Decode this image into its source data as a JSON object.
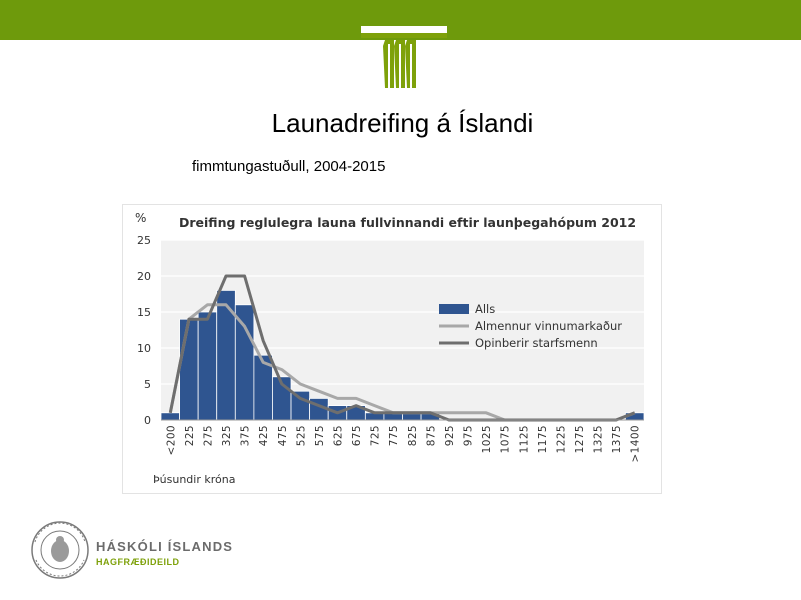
{
  "slide": {
    "title": "Launadreifing á Íslandi",
    "subtitle": "fimmtungastuðull, 2004-2015",
    "footer_name": "HÁSKÓLI ÍSLANDS",
    "footer_dept": "HAGFRÆÐIDEILD",
    "header_color": "#6e9a0c",
    "logo_icon": "university-pillars-logo",
    "seal_icon": "university-seal"
  },
  "chart_data": {
    "type": "bar",
    "title": "Dreifing reglulegra launa fullvinnandi eftir launþegahópum 2012",
    "ylabel": "%",
    "xlabel": "Þúsundir króna",
    "ylim": [
      0,
      25
    ],
    "yticks": [
      0,
      5,
      10,
      15,
      20,
      25
    ],
    "grid": true,
    "legend_position": "right",
    "categories": [
      "<200",
      "225",
      "275",
      "325",
      "375",
      "425",
      "475",
      "525",
      "575",
      "625",
      "675",
      "725",
      "775",
      "825",
      "875",
      "925",
      "975",
      "1025",
      "1075",
      "1125",
      "1175",
      "1225",
      "1275",
      "1325",
      "1375",
      ">1400"
    ],
    "series": [
      {
        "name": "Alls",
        "kind": "bar",
        "color": "#2f5590",
        "values": [
          1,
          14,
          15,
          18,
          16,
          9,
          6,
          4,
          3,
          2,
          2,
          1,
          1,
          1,
          1,
          0,
          0,
          0,
          0,
          0,
          0,
          0,
          0,
          0,
          0,
          1
        ]
      },
      {
        "name": "Almennur vinnumarkaður",
        "kind": "line",
        "color": "#a8a8a8",
        "values": [
          1,
          14,
          16,
          16,
          13,
          8,
          7,
          5,
          4,
          3,
          3,
          2,
          1,
          1,
          1,
          1,
          1,
          1,
          0,
          0,
          0,
          0,
          0,
          0,
          0,
          1
        ]
      },
      {
        "name": "Opinberir starfsmenn",
        "kind": "line",
        "color": "#6e6e6e",
        "values": [
          1,
          14,
          14,
          20,
          20,
          11,
          5,
          3,
          2,
          1,
          2,
          1,
          1,
          1,
          1,
          0,
          0,
          0,
          0,
          0,
          0,
          0,
          0,
          0,
          0,
          1
        ]
      }
    ]
  }
}
